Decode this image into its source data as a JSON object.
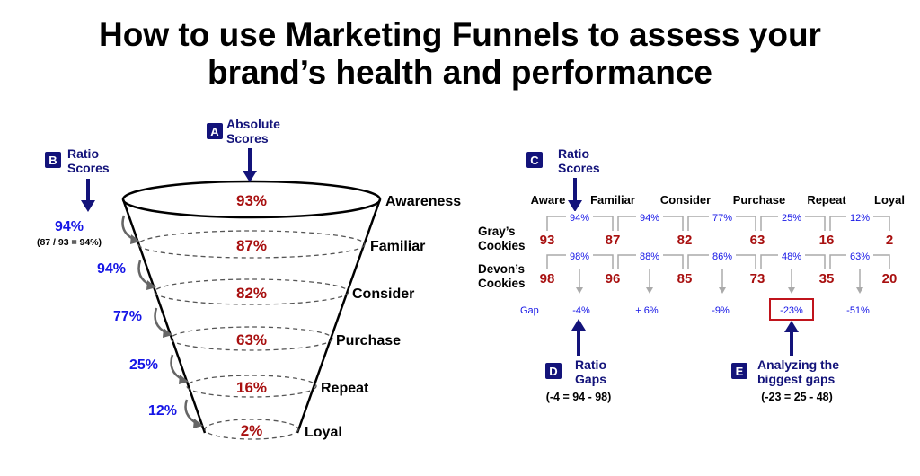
{
  "title": {
    "line1": "How to use Marketing Funnels to assess your",
    "line2": "brand’s health and performance"
  },
  "colors": {
    "red": "#a81010",
    "blue": "#1515e6",
    "navy": "#13137a",
    "badge": "#13137a"
  },
  "callouts": {
    "a": {
      "letter": "A",
      "line1": "Absolute",
      "line2": "Scores"
    },
    "b": {
      "letter": "B",
      "line1": "Ratio",
      "line2": "Scores"
    },
    "c": {
      "letter": "C",
      "line1": "Ratio",
      "line2": "Scores"
    },
    "d": {
      "letter": "D",
      "line1": "Ratio",
      "line2": "Gaps",
      "formula": "(-4 = 94 - 98)"
    },
    "e": {
      "letter": "E",
      "line1": "Analyzing the",
      "line2": "biggest gaps",
      "formula": "(-23 = 25 - 48)"
    }
  },
  "funnel": {
    "stages": [
      {
        "label": "Awareness",
        "value": "93%"
      },
      {
        "label": "Familiar",
        "value": "87%"
      },
      {
        "label": "Consider",
        "value": "82%"
      },
      {
        "label": "Purchase",
        "value": "63%"
      },
      {
        "label": "Repeat",
        "value": "16%"
      },
      {
        "label": "Loyal",
        "value": "2%"
      }
    ],
    "ratios": [
      "94%",
      "94%",
      "77%",
      "25%",
      "12%"
    ],
    "ratio_note": "(87 / 93 = 94%)"
  },
  "table": {
    "headers": [
      "Aware",
      "Familiar",
      "Consider",
      "Purchase",
      "Repeat",
      "Loyal"
    ],
    "brands": [
      {
        "name_line1": "Gray’s",
        "name_line2": "Cookies",
        "values": [
          "93",
          "87",
          "82",
          "63",
          "16",
          "2"
        ],
        "ratios": [
          "94%",
          "94%",
          "77%",
          "25%",
          "12%"
        ]
      },
      {
        "name_line1": "Devon’s",
        "name_line2": "Cookies",
        "values": [
          "98",
          "96",
          "85",
          "73",
          "35",
          "20"
        ],
        "ratios": [
          "98%",
          "88%",
          "86%",
          "48%",
          "63%"
        ]
      }
    ],
    "gap_label": "Gap",
    "gaps": [
      "-4%",
      "+ 6%",
      "-9%",
      "-23%",
      "-51%"
    ],
    "highlight_gap_index": 3
  }
}
